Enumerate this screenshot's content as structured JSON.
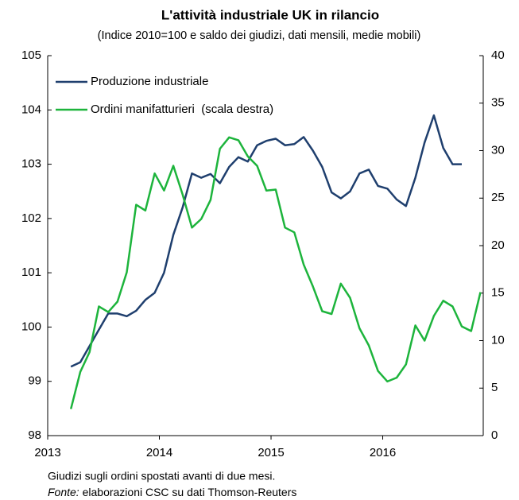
{
  "chart_data": {
    "type": "line",
    "title": "L'attività industriale UK in rilancio",
    "subtitle": "(Indice 2010=100 e saldo dei giudizi, dati mensili, medie mobili)",
    "xlim": [
      2013,
      2016.9
    ],
    "xticks": [
      2013,
      2014,
      2015,
      2016
    ],
    "ylim": [
      98,
      105
    ],
    "yticks": [
      98,
      99,
      100,
      101,
      102,
      103,
      104,
      105
    ],
    "y2lim": [
      0,
      40
    ],
    "y2ticks": [
      0,
      5,
      10,
      15,
      20,
      25,
      30,
      35,
      40
    ],
    "legend": "upper left",
    "series": [
      {
        "name": "Produzione industriale",
        "color": "#1f3f6e",
        "x": [
          2013.208,
          2013.292,
          2013.375,
          2013.458,
          2013.542,
          2013.625,
          2013.708,
          2013.792,
          2013.875,
          2013.958,
          2014.042,
          2014.125,
          2014.208,
          2014.292,
          2014.375,
          2014.458,
          2014.542,
          2014.625,
          2014.708,
          2014.792,
          2014.875,
          2014.958,
          2015.042,
          2015.125,
          2015.208,
          2015.292,
          2015.375,
          2015.458,
          2015.542,
          2015.625,
          2015.708,
          2015.792,
          2015.875,
          2015.958,
          2016.042,
          2016.125,
          2016.208,
          2016.292,
          2016.375,
          2016.458,
          2016.542,
          2016.625,
          2016.708
        ],
        "values": [
          99.27,
          99.35,
          99.65,
          99.95,
          100.25,
          100.25,
          100.2,
          100.3,
          100.5,
          100.63,
          101.0,
          101.7,
          102.2,
          102.83,
          102.75,
          102.82,
          102.65,
          102.95,
          103.13,
          103.05,
          103.35,
          103.43,
          103.47,
          103.35,
          103.37,
          103.5,
          103.25,
          102.95,
          102.48,
          102.37,
          102.5,
          102.83,
          102.9,
          102.6,
          102.55,
          102.35,
          102.23,
          102.75,
          103.4,
          103.9,
          103.3,
          103.0,
          103.0
        ]
      },
      {
        "name": "Ordini manifatturieri  (scala destra)",
        "color": "#1db43c",
        "axis": "y2",
        "x": [
          2013.208,
          2013.292,
          2013.375,
          2013.458,
          2013.542,
          2013.625,
          2013.708,
          2013.792,
          2013.875,
          2013.958,
          2014.042,
          2014.125,
          2014.208,
          2014.292,
          2014.375,
          2014.458,
          2014.542,
          2014.625,
          2014.708,
          2014.792,
          2014.875,
          2014.958,
          2015.042,
          2015.125,
          2015.208,
          2015.292,
          2015.375,
          2015.458,
          2015.542,
          2015.625,
          2015.708,
          2015.792,
          2015.875,
          2015.958,
          2016.042,
          2016.125,
          2016.208,
          2016.292,
          2016.375,
          2016.458,
          2016.542,
          2016.625,
          2016.708,
          2016.792,
          2016.875
        ],
        "values": [
          2.8,
          6.7,
          8.8,
          13.6,
          13.0,
          14.1,
          17.2,
          24.3,
          23.7,
          27.6,
          25.8,
          28.4,
          25.4,
          21.9,
          22.8,
          24.8,
          30.2,
          31.4,
          31.1,
          29.4,
          28.4,
          25.8,
          25.9,
          21.9,
          21.4,
          18.0,
          15.7,
          13.1,
          12.8,
          16.0,
          14.5,
          11.3,
          9.5,
          6.8,
          5.7,
          6.1,
          7.5,
          11.6,
          10.0,
          12.6,
          14.2,
          13.6,
          11.5,
          11.0,
          15.1
        ]
      }
    ],
    "note": "Giudizi sugli ordini spostati avanti di due mesi.",
    "source_label": "Fonte:",
    "source": "elaborazioni CSC su dati Thomson-Reuters"
  }
}
